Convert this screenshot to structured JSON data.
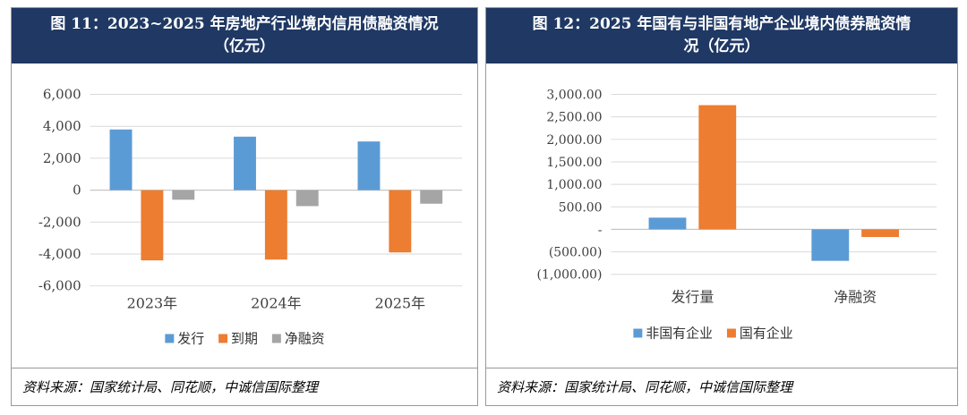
{
  "colors": {
    "header_bg": "#1f3864",
    "blue": "#5b9bd5",
    "orange": "#ed7d31",
    "gray": "#a5a5a5"
  },
  "chart_data": [
    {
      "type": "bar",
      "title_line1": "图 11：2023~2025 年房地产行业境内信用债融资情况",
      "title_line2": "（亿元）",
      "categories": [
        "2023年",
        "2024年",
        "2025年"
      ],
      "series": [
        {
          "name": "发行",
          "values": [
            3800,
            3350,
            3050
          ]
        },
        {
          "name": "到期",
          "values": [
            -4400,
            -4350,
            -3900
          ]
        },
        {
          "name": "净融资",
          "values": [
            -600,
            -1000,
            -850
          ]
        }
      ],
      "yticks": [
        "6,000",
        "4,000",
        "2,000",
        "0",
        "-2,000",
        "-4,000",
        "-6,000"
      ],
      "ylim": [
        -6000,
        6000
      ],
      "source": "资料来源：国家统计局、同花顺，中诚信国际整理"
    },
    {
      "type": "bar",
      "title_line1": "图 12：2025 年国有与非国有地产企业境内债券融资情",
      "title_line2": "况（亿元）",
      "categories": [
        "发行量",
        "净融资"
      ],
      "series": [
        {
          "name": "非国有企业",
          "values": [
            260,
            -700
          ]
        },
        {
          "name": "国有企业",
          "values": [
            2760,
            -170
          ]
        }
      ],
      "yticks": [
        "3,000.00",
        "2,500.00",
        "2,000.00",
        "1,500.00",
        "1,000.00",
        "500.00",
        "-",
        "(500.00)",
        "(1,000.00)"
      ],
      "ylim": [
        -1000,
        3000
      ],
      "source": "资料来源：国家统计局、同花顺，中诚信国际整理"
    }
  ]
}
